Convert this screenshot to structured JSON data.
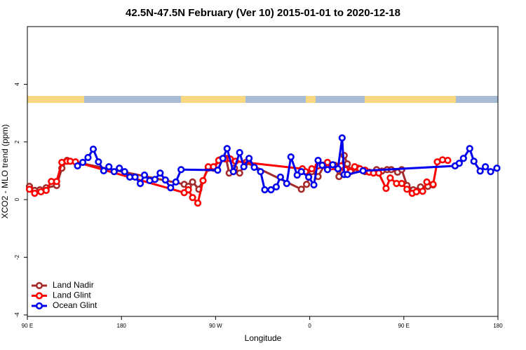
{
  "chart_data": {
    "type": "line",
    "title": "42.5N-47.5N February (Ver 10)   2015-01-01 to 2020-12-18",
    "x_label": "Longitude",
    "y_label": "XCO2 - MLO trend (ppm)",
    "xlim": [
      90,
      540
    ],
    "xticks": [
      {
        "value": 90,
        "label": "90 E"
      },
      {
        "value": 180,
        "label": "180"
      },
      {
        "value": 270,
        "label": "90 W"
      },
      {
        "value": 360,
        "label": "0"
      },
      {
        "value": 450,
        "label": "90 E"
      },
      {
        "value": 540,
        "label": "180"
      }
    ],
    "ylim": [
      -4.05,
      6.0
    ],
    "yticks": [
      -4,
      -2,
      0,
      2,
      4
    ],
    "legend": "bottom-left",
    "series": [
      {
        "name": "Land Nadir",
        "color": "#a52a2a",
        "x": [
          92,
          97,
          102,
          108,
          118,
          123,
          128,
          240,
          244,
          248,
          254,
          263,
          268,
          274,
          280,
          283,
          288,
          293,
          299,
          352,
          357,
          362,
          368,
          374,
          378,
          384,
          388,
          393,
          396,
          400,
          406,
          413,
          424,
          429,
          434,
          438,
          444,
          448,
          453,
          459,
          466,
          473,
          478
        ],
        "values": [
          0.46,
          0.32,
          0.34,
          0.41,
          0.49,
          1.09,
          1.36,
          0.53,
          0.46,
          0.61,
          0.36,
          1.09,
          1.09,
          1.38,
          1.43,
          0.92,
          1.09,
          0.92,
          1.29,
          0.36,
          0.53,
          0.97,
          0.8,
          1.19,
          1.21,
          1.19,
          0.8,
          1.53,
          1.24,
          1.0,
          1.09,
          0.97,
          1.04,
          0.99,
          1.04,
          1.04,
          0.95,
          1.04,
          0.49,
          0.34,
          0.44,
          0.46,
          0.51
        ]
      },
      {
        "name": "Land Glint",
        "color": "#ff0000",
        "x": [
          92,
          97,
          103,
          108,
          113,
          118,
          123,
          128,
          131,
          136,
          240,
          244,
          248,
          253,
          258,
          263,
          268,
          273,
          279,
          284,
          289,
          353,
          356,
          362,
          368,
          372,
          377,
          381,
          385,
          390,
          394,
          399,
          403,
          408,
          413,
          417,
          421,
          426,
          433,
          437,
          443,
          448,
          453,
          458,
          462,
          468,
          472,
          478,
          482,
          487,
          492
        ],
        "values": [
          0.36,
          0.22,
          0.27,
          0.32,
          0.63,
          0.63,
          1.29,
          1.33,
          1.33,
          1.31,
          0.24,
          0.34,
          0.07,
          -0.12,
          0.66,
          1.14,
          1.14,
          1.36,
          1.41,
          1.41,
          1.33,
          1.07,
          0.97,
          1.07,
          1.17,
          1.19,
          1.29,
          1.14,
          1.12,
          1.17,
          1.04,
          0.97,
          1.14,
          1.07,
          1.02,
          0.95,
          0.92,
          0.92,
          0.39,
          0.75,
          0.56,
          0.56,
          0.36,
          0.22,
          0.27,
          0.29,
          0.61,
          0.53,
          1.31,
          1.38,
          1.36
        ]
      },
      {
        "name": "Ocean Glint",
        "color": "#0000ee",
        "x": [
          138,
          143,
          148,
          153,
          158,
          163,
          168,
          173,
          178,
          183,
          188,
          193,
          198,
          202,
          207,
          212,
          217,
          222,
          227,
          232,
          237,
          272,
          277,
          281,
          287,
          293,
          297,
          302,
          307,
          313,
          317,
          323,
          328,
          332,
          338,
          342,
          348,
          352,
          359,
          364,
          368,
          372,
          377,
          382,
          387,
          391,
          393,
          396,
          411,
          499,
          503,
          507,
          513,
          517,
          523,
          528,
          533,
          539
        ],
        "values": [
          1.17,
          1.29,
          1.46,
          1.75,
          1.31,
          1.0,
          1.14,
          0.97,
          1.09,
          0.97,
          0.78,
          0.78,
          0.56,
          0.85,
          0.66,
          0.7,
          0.92,
          0.68,
          0.41,
          0.61,
          1.04,
          1.02,
          1.43,
          1.77,
          0.97,
          1.63,
          1.14,
          1.43,
          1.12,
          0.97,
          0.34,
          0.34,
          0.44,
          0.78,
          0.56,
          1.48,
          0.85,
          0.97,
          0.78,
          0.51,
          1.36,
          1.19,
          1.04,
          1.21,
          1.07,
          2.14,
          0.87,
          0.87,
          1.0,
          1.17,
          1.26,
          1.43,
          1.77,
          1.33,
          0.99,
          1.14,
          0.97,
          1.09
        ]
      }
    ]
  }
}
